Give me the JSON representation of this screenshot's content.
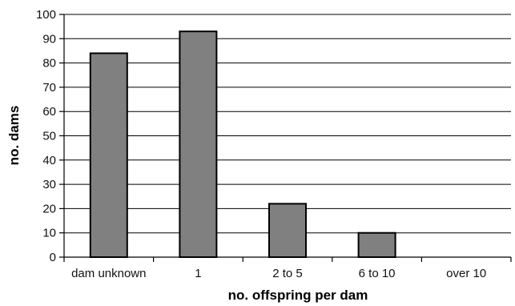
{
  "chart_data": {
    "type": "bar",
    "categories": [
      "dam unknown",
      "1",
      "2 to 5",
      "6 to 10",
      "over 10"
    ],
    "values": [
      84,
      93,
      22,
      10,
      0
    ],
    "xlabel": "no. offspring per dam",
    "ylabel": "no. dams",
    "ylim": [
      0,
      100
    ],
    "yticks": [
      "0",
      "10",
      "20",
      "30",
      "40",
      "50",
      "60",
      "70",
      "80",
      "90",
      "100"
    ],
    "grid": true,
    "bar_color": "#808080",
    "bar_edge_color": "#000000"
  }
}
